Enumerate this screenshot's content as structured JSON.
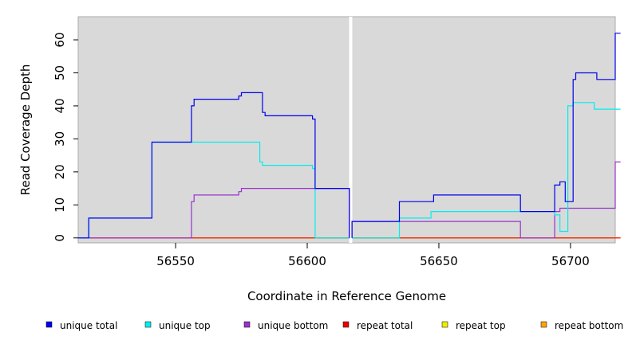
{
  "chart_data": {
    "type": "line",
    "step": true,
    "xlabel": "Coordinate in Reference Genome",
    "ylabel": "Read Coverage Depth",
    "xlim": [
      56513,
      56717
    ],
    "ylim": [
      -1.5,
      67
    ],
    "xticks": [
      56550,
      56600,
      56650,
      56700
    ],
    "yticks": [
      0,
      10,
      20,
      30,
      40,
      50,
      60
    ],
    "background": "#d9d9d9",
    "gap_marker_x": 56616.5,
    "legend_position": "bottom",
    "series": [
      {
        "name": "unique total",
        "color": "#0000ee",
        "segments": [
          [
            [
              56513,
              0
            ],
            [
              56517,
              0
            ],
            [
              56517,
              6
            ],
            [
              56541,
              6
            ],
            [
              56541,
              29
            ],
            [
              56556,
              29
            ],
            [
              56556,
              40
            ],
            [
              56557,
              40
            ],
            [
              56557,
              42
            ],
            [
              56574,
              42
            ],
            [
              56574,
              43
            ],
            [
              56575,
              43
            ],
            [
              56575,
              44
            ],
            [
              56583,
              44
            ],
            [
              56583,
              38
            ],
            [
              56584,
              38
            ],
            [
              56584,
              37
            ],
            [
              56602,
              37
            ],
            [
              56602,
              36
            ],
            [
              56603,
              36
            ],
            [
              56603,
              15
            ],
            [
              56616,
              15
            ],
            [
              56616,
              0
            ]
          ],
          [
            [
              56617,
              0
            ],
            [
              56617,
              5
            ],
            [
              56635,
              5
            ],
            [
              56635,
              11
            ],
            [
              56648,
              11
            ],
            [
              56648,
              13
            ],
            [
              56681,
              13
            ],
            [
              56681,
              8
            ],
            [
              56694,
              8
            ],
            [
              56694,
              16
            ],
            [
              56696,
              16
            ],
            [
              56696,
              17
            ],
            [
              56698,
              17
            ],
            [
              56698,
              11
            ],
            [
              56701,
              11
            ],
            [
              56701,
              39
            ],
            [
              56701,
              48
            ],
            [
              56702,
              48
            ],
            [
              56702,
              50
            ],
            [
              56710,
              50
            ],
            [
              56710,
              48
            ],
            [
              56717,
              48
            ],
            [
              56717,
              62
            ],
            [
              56719,
              62
            ]
          ]
        ]
      },
      {
        "name": "unique top",
        "color": "#00eeee",
        "segments": [
          [
            [
              56513,
              0
            ],
            [
              56517,
              0
            ],
            [
              56517,
              6
            ],
            [
              56541,
              6
            ],
            [
              56541,
              29
            ],
            [
              56582,
              29
            ],
            [
              56582,
              23
            ],
            [
              56583,
              23
            ],
            [
              56583,
              22
            ],
            [
              56602,
              22
            ],
            [
              56602,
              21
            ],
            [
              56603,
              21
            ],
            [
              56603,
              0
            ],
            [
              56616,
              0
            ]
          ],
          [
            [
              56617,
              0
            ],
            [
              56635,
              0
            ],
            [
              56635,
              6
            ],
            [
              56647,
              6
            ],
            [
              56647,
              8
            ],
            [
              56694,
              8
            ],
            [
              56694,
              7
            ],
            [
              56696,
              7
            ],
            [
              56696,
              2
            ],
            [
              56699,
              2
            ],
            [
              56699,
              40
            ],
            [
              56701,
              40
            ],
            [
              56701,
              41
            ],
            [
              56709,
              41
            ],
            [
              56709,
              39
            ],
            [
              56719,
              39
            ]
          ]
        ]
      },
      {
        "name": "unique bottom",
        "color": "#9932cc",
        "segments": [
          [
            [
              56513,
              0
            ],
            [
              56556,
              0
            ],
            [
              56556,
              11
            ],
            [
              56557,
              11
            ],
            [
              56557,
              13
            ],
            [
              56574,
              13
            ],
            [
              56574,
              14
            ],
            [
              56575,
              14
            ],
            [
              56575,
              15
            ],
            [
              56616,
              15
            ],
            [
              56616,
              0
            ]
          ],
          [
            [
              56617,
              0
            ],
            [
              56617,
              5
            ],
            [
              56681,
              5
            ],
            [
              56681,
              0
            ],
            [
              56694,
              0
            ],
            [
              56694,
              8
            ],
            [
              56696,
              8
            ],
            [
              56696,
              9
            ],
            [
              56717,
              9
            ],
            [
              56717,
              23
            ],
            [
              56719,
              23
            ]
          ]
        ]
      },
      {
        "name": "repeat total",
        "color": "#ee0000",
        "segments": [
          [
            [
              56513,
              0
            ],
            [
              56616,
              0
            ]
          ],
          [
            [
              56617,
              0
            ],
            [
              56719,
              0
            ]
          ]
        ]
      },
      {
        "name": "repeat top",
        "color": "#eeee00",
        "segments": [
          [
            [
              56513,
              0
            ],
            [
              56616,
              0
            ]
          ],
          [
            [
              56617,
              0
            ],
            [
              56719,
              0
            ]
          ]
        ]
      },
      {
        "name": "repeat bottom",
        "color": "#ffa500",
        "segments": [
          [
            [
              56513,
              0
            ],
            [
              56616,
              0
            ]
          ],
          [
            [
              56617,
              0
            ],
            [
              56719,
              0
            ]
          ]
        ]
      }
    ]
  }
}
